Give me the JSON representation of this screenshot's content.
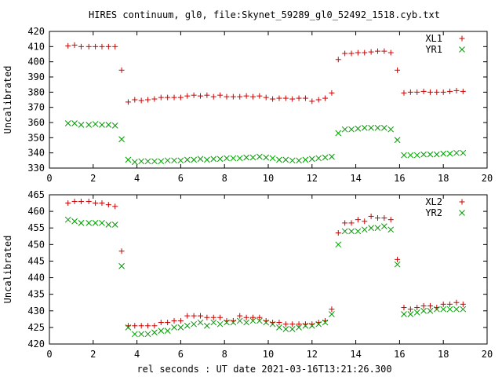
{
  "title": "HIRES continuum, gl0, file:Skynet_59289_gl0_52492_1518.cyb.txt",
  "xlabel": "rel seconds : UT date 2021-03-16T13:21:26.300",
  "chart_data": [
    {
      "type": "scatter",
      "panel": "top",
      "ylabel": "Uncalibrated",
      "xlim": [
        0,
        20
      ],
      "ylim": [
        330,
        420
      ],
      "xticks": [
        0,
        2,
        4,
        6,
        8,
        10,
        12,
        14,
        16,
        18,
        20
      ],
      "yticks": [
        330,
        340,
        350,
        360,
        370,
        380,
        390,
        400,
        410,
        420
      ],
      "grid": false,
      "legend_position": "top-right",
      "series": [
        {
          "name": "XL1",
          "marker": "plus",
          "color": "#cc0000",
          "x": [
            0.85,
            1.15,
            1.45,
            1.8,
            2.1,
            2.4,
            2.7,
            3.0,
            3.3,
            3.6,
            3.9,
            4.2,
            4.5,
            4.8,
            5.1,
            5.4,
            5.7,
            6.0,
            6.3,
            6.6,
            6.9,
            7.2,
            7.5,
            7.8,
            8.1,
            8.4,
            8.7,
            9.0,
            9.3,
            9.6,
            9.9,
            10.2,
            10.5,
            10.8,
            11.1,
            11.4,
            11.7,
            12.0,
            12.3,
            12.6,
            12.9,
            13.2,
            13.5,
            13.8,
            14.1,
            14.4,
            14.7,
            15.0,
            15.3,
            15.6,
            15.9,
            16.2,
            16.5,
            16.8,
            17.1,
            17.4,
            17.7,
            18.0,
            18.3,
            18.6,
            18.9
          ],
          "y": [
            410.5,
            411,
            410,
            410,
            410,
            410,
            410,
            410,
            394.5,
            373.5,
            375,
            374.5,
            375,
            375.5,
            376.5,
            376.5,
            376.5,
            376.5,
            377.5,
            378,
            377.5,
            378,
            377,
            378,
            377,
            377,
            377,
            377.5,
            377,
            377.5,
            376.5,
            375.5,
            376,
            376,
            375.5,
            376,
            376,
            374,
            375,
            376,
            379.5,
            401.5,
            405.5,
            405.5,
            406,
            406,
            406.5,
            407,
            407,
            406,
            394.5,
            379.5,
            380,
            380,
            380.5,
            380,
            380,
            380,
            380.5,
            381,
            380.5
          ]
        },
        {
          "name": "YR1",
          "marker": "cross",
          "color": "#009900",
          "x": [
            0.85,
            1.15,
            1.45,
            1.8,
            2.1,
            2.4,
            2.7,
            3.0,
            3.3,
            3.6,
            3.9,
            4.2,
            4.5,
            4.8,
            5.1,
            5.4,
            5.7,
            6.0,
            6.3,
            6.6,
            6.9,
            7.2,
            7.5,
            7.8,
            8.1,
            8.4,
            8.7,
            9.0,
            9.3,
            9.6,
            9.9,
            10.2,
            10.5,
            10.8,
            11.1,
            11.4,
            11.7,
            12.0,
            12.3,
            12.6,
            12.9,
            13.2,
            13.5,
            13.8,
            14.1,
            14.4,
            14.7,
            15.0,
            15.3,
            15.6,
            15.9,
            16.2,
            16.5,
            16.8,
            17.1,
            17.4,
            17.7,
            18.0,
            18.3,
            18.6,
            18.9
          ],
          "y": [
            359.5,
            359.5,
            358.5,
            358.5,
            359,
            358.5,
            358.5,
            358,
            349,
            335.5,
            334,
            334.5,
            334.5,
            334.5,
            334.5,
            335,
            335,
            335,
            335.5,
            335.5,
            336,
            335.5,
            336,
            336,
            336.5,
            336.5,
            336.5,
            337,
            337,
            337.5,
            337,
            336.5,
            335.5,
            335.5,
            335,
            335,
            335.5,
            336,
            336.5,
            337,
            337.5,
            353,
            355.5,
            355.5,
            356,
            356.5,
            356.5,
            356.5,
            356.5,
            355.5,
            348.5,
            338.5,
            338.5,
            338.5,
            339,
            339,
            339,
            339.5,
            339.5,
            340,
            340
          ]
        }
      ]
    },
    {
      "type": "scatter",
      "panel": "bottom",
      "ylabel": "Uncalibrated",
      "xlim": [
        0,
        20
      ],
      "ylim": [
        420,
        465
      ],
      "xticks": [
        0,
        2,
        4,
        6,
        8,
        10,
        12,
        14,
        16,
        18,
        20
      ],
      "yticks": [
        420,
        425,
        430,
        435,
        440,
        445,
        450,
        455,
        460,
        465
      ],
      "grid": false,
      "legend_position": "top-right",
      "series": [
        {
          "name": "XL2",
          "marker": "plus",
          "color": "#cc0000",
          "x": [
            0.85,
            1.15,
            1.45,
            1.8,
            2.1,
            2.4,
            2.7,
            3.0,
            3.3,
            3.6,
            3.9,
            4.2,
            4.5,
            4.8,
            5.1,
            5.4,
            5.7,
            6.0,
            6.3,
            6.6,
            6.9,
            7.2,
            7.5,
            7.8,
            8.1,
            8.4,
            8.7,
            9.0,
            9.3,
            9.6,
            9.9,
            10.2,
            10.5,
            10.8,
            11.1,
            11.4,
            11.7,
            12.0,
            12.3,
            12.6,
            12.9,
            13.2,
            13.5,
            13.8,
            14.1,
            14.4,
            14.7,
            15.0,
            15.3,
            15.6,
            15.9,
            16.2,
            16.5,
            16.8,
            17.1,
            17.4,
            17.7,
            18.0,
            18.3,
            18.6,
            18.9
          ],
          "y": [
            462.5,
            463,
            463,
            463,
            462.5,
            462.5,
            462,
            461.5,
            448,
            425.5,
            425.5,
            425.5,
            425.5,
            425.5,
            426.5,
            426.5,
            427,
            427,
            428.5,
            428.5,
            428.5,
            428,
            428,
            428,
            427,
            427,
            428.5,
            428,
            428,
            428,
            427,
            426.5,
            426.5,
            426,
            426,
            426,
            426,
            426,
            426.5,
            427,
            430.5,
            453.5,
            456.5,
            456.5,
            457.5,
            457,
            458.5,
            458,
            458,
            457.5,
            445.5,
            431,
            430.5,
            431,
            431.5,
            431.5,
            431,
            432,
            432,
            432.5,
            432
          ]
        },
        {
          "name": "YR2",
          "marker": "cross",
          "color": "#009900",
          "x": [
            0.85,
            1.15,
            1.45,
            1.8,
            2.1,
            2.4,
            2.7,
            3.0,
            3.3,
            3.6,
            3.9,
            4.2,
            4.5,
            4.8,
            5.1,
            5.4,
            5.7,
            6.0,
            6.3,
            6.6,
            6.9,
            7.2,
            7.5,
            7.8,
            8.1,
            8.4,
            8.7,
            9.0,
            9.3,
            9.6,
            9.9,
            10.2,
            10.5,
            10.8,
            11.1,
            11.4,
            11.7,
            12.0,
            12.3,
            12.6,
            12.9,
            13.2,
            13.5,
            13.8,
            14.1,
            14.4,
            14.7,
            15.0,
            15.3,
            15.6,
            15.9,
            16.2,
            16.5,
            16.8,
            17.1,
            17.4,
            17.7,
            18.0,
            18.3,
            18.6,
            18.9
          ],
          "y": [
            457.5,
            457,
            456.5,
            456.5,
            456.5,
            456.5,
            456,
            456,
            443.5,
            425,
            423,
            423,
            423,
            423.5,
            424,
            424,
            425,
            425,
            425.5,
            426,
            426.5,
            425.5,
            426.5,
            426,
            426.5,
            426.5,
            427,
            426.5,
            427,
            427,
            426.5,
            426,
            425,
            424.5,
            424.5,
            425,
            425.5,
            425.5,
            426,
            426.5,
            429,
            450,
            454,
            454,
            454,
            454.5,
            455,
            455,
            455.5,
            454.5,
            444,
            429,
            429,
            429.5,
            430,
            430,
            430.5,
            430.5,
            430.5,
            430.5,
            430.5
          ]
        }
      ]
    }
  ]
}
